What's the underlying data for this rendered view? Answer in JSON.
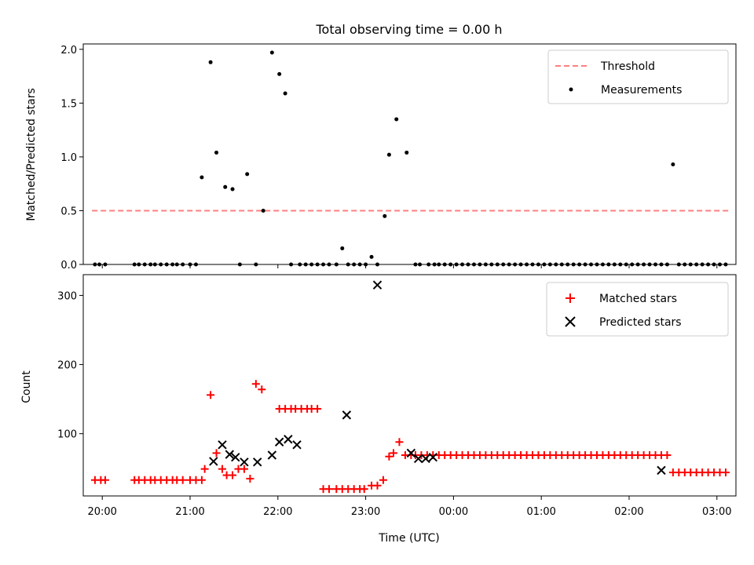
{
  "chart_data": [
    {
      "type": "scatter",
      "title": "Total observing time = 0.00 h",
      "ylabel": "Matched/Predicted stars",
      "xlim": [
        "19:47",
        "03:13"
      ],
      "ylim": [
        0,
        2.05
      ],
      "xticks": [
        "20:00",
        "21:00",
        "22:00",
        "23:00",
        "00:00",
        "01:00",
        "02:00",
        "03:00"
      ],
      "yticks": [
        0.0,
        0.5,
        1.0,
        1.5,
        2.0
      ],
      "ytick_labels": [
        "0.0",
        "0.5",
        "1.0",
        "1.5",
        "2.0"
      ],
      "legend_position": "top-right",
      "threshold": {
        "name": "Threshold",
        "value": 0.5,
        "x_range": [
          "19:53",
          "03:08"
        ],
        "color": "#ff7f7f"
      },
      "series": [
        {
          "name": "Measurements",
          "color": "#000000",
          "x": [
            "19:55",
            "19:58",
            "20:02",
            "20:22",
            "20:25",
            "20:29",
            "20:33",
            "20:36",
            "20:40",
            "20:44",
            "20:48",
            "20:51",
            "20:55",
            "21:00",
            "21:04",
            "21:08",
            "21:14",
            "21:18",
            "21:24",
            "21:29",
            "21:34",
            "21:39",
            "21:45",
            "21:50",
            "21:56",
            "22:01",
            "22:05",
            "22:09",
            "22:15",
            "22:19",
            "22:23",
            "22:27",
            "22:31",
            "22:35",
            "22:40",
            "22:44",
            "22:48",
            "22:52",
            "22:56",
            "23:00",
            "23:04",
            "23:08",
            "23:13",
            "23:16",
            "23:21",
            "23:28",
            "23:34",
            "23:37",
            "23:43",
            "23:47",
            "23:50",
            "23:54",
            "23:58",
            "00:02",
            "00:06",
            "00:10",
            "00:14",
            "00:18",
            "00:22",
            "00:26",
            "00:30",
            "00:34",
            "00:38",
            "00:42",
            "00:46",
            "00:50",
            "00:54",
            "00:58",
            "01:02",
            "01:06",
            "01:10",
            "01:14",
            "01:18",
            "01:22",
            "01:26",
            "01:30",
            "01:34",
            "01:38",
            "01:42",
            "01:46",
            "01:50",
            "01:54",
            "01:58",
            "02:02",
            "02:06",
            "02:10",
            "02:14",
            "02:18",
            "02:22",
            "02:26",
            "02:30",
            "02:34",
            "02:38",
            "02:42",
            "02:46",
            "02:50",
            "02:54",
            "02:58",
            "03:02",
            "03:06"
          ],
          "y": [
            0,
            0,
            0,
            0,
            0,
            0,
            0,
            0,
            0,
            0,
            0,
            0,
            0,
            0,
            0,
            0.81,
            1.88,
            1.04,
            0.72,
            0.7,
            0,
            0.84,
            0,
            0.5,
            1.97,
            1.77,
            1.59,
            0,
            0,
            0,
            0,
            0,
            0,
            0,
            0,
            0.15,
            0,
            0,
            0,
            0,
            0.07,
            0,
            0.45,
            1.02,
            1.35,
            1.04,
            0,
            0,
            0,
            0,
            0,
            0,
            0,
            0,
            0,
            0,
            0,
            0,
            0,
            0,
            0,
            0,
            0,
            0,
            0,
            0,
            0,
            0,
            0,
            0,
            0,
            0,
            0,
            0,
            0,
            0,
            0,
            0,
            0,
            0,
            0,
            0,
            0,
            0,
            0,
            0,
            0,
            0,
            0,
            0,
            0.93,
            0,
            0,
            0,
            0,
            0,
            0,
            0,
            0,
            0
          ]
        }
      ]
    },
    {
      "type": "scatter",
      "xlabel": "Time (UTC)",
      "ylabel": "Count",
      "xlim": [
        "19:47",
        "03:13"
      ],
      "ylim": [
        10,
        330
      ],
      "xticks": [
        "20:00",
        "21:00",
        "22:00",
        "23:00",
        "00:00",
        "01:00",
        "02:00",
        "03:00"
      ],
      "yticks": [
        100,
        200,
        300
      ],
      "legend_position": "top-right",
      "series": [
        {
          "name": "Matched stars",
          "color": "#ff0000",
          "marker": "+",
          "x": [
            "19:55",
            "19:59",
            "20:02",
            "20:22",
            "20:25",
            "20:29",
            "20:33",
            "20:36",
            "20:40",
            "20:44",
            "20:48",
            "20:51",
            "20:55",
            "21:00",
            "21:04",
            "21:08",
            "21:10",
            "21:14",
            "21:18",
            "21:22",
            "21:25",
            "21:29",
            "21:33",
            "21:37",
            "21:41",
            "21:45",
            "21:49",
            "22:01",
            "22:05",
            "22:09",
            "22:12",
            "22:16",
            "22:20",
            "22:23",
            "22:27",
            "22:31",
            "22:35",
            "22:40",
            "22:44",
            "22:48",
            "22:52",
            "22:56",
            "22:59",
            "23:04",
            "23:08",
            "23:12",
            "23:16",
            "23:19",
            "23:23",
            "23:27",
            "23:31",
            "23:34",
            "23:38",
            "23:42",
            "23:46",
            "23:50",
            "23:54",
            "23:58",
            "00:02",
            "00:06",
            "00:10",
            "00:14",
            "00:18",
            "00:22",
            "00:26",
            "00:30",
            "00:34",
            "00:38",
            "00:42",
            "00:46",
            "00:50",
            "00:54",
            "00:58",
            "01:02",
            "01:06",
            "01:10",
            "01:14",
            "01:18",
            "01:22",
            "01:26",
            "01:30",
            "01:34",
            "01:38",
            "01:42",
            "01:46",
            "01:50",
            "01:54",
            "01:58",
            "02:02",
            "02:06",
            "02:10",
            "02:14",
            "02:18",
            "02:22",
            "02:26",
            "02:30",
            "02:34",
            "02:38",
            "02:42",
            "02:46",
            "02:50",
            "02:54",
            "02:58",
            "03:02",
            "03:06"
          ],
          "y": [
            33,
            33,
            33,
            33,
            33,
            33,
            33,
            33,
            33,
            33,
            33,
            33,
            33,
            33,
            33,
            33,
            49,
            156,
            72,
            49,
            40,
            40,
            49,
            49,
            35,
            172,
            164,
            136,
            136,
            136,
            136,
            136,
            136,
            136,
            136,
            20,
            20,
            20,
            20,
            20,
            20,
            20,
            20,
            25,
            25,
            33,
            67,
            72,
            88,
            69,
            69,
            69,
            69,
            69,
            69,
            69,
            69,
            69,
            69,
            69,
            69,
            69,
            69,
            69,
            69,
            69,
            69,
            69,
            69,
            69,
            69,
            69,
            69,
            69,
            69,
            69,
            69,
            69,
            69,
            69,
            69,
            69,
            69,
            69,
            69,
            69,
            69,
            69,
            69,
            69,
            69,
            69,
            69,
            69,
            69,
            44,
            44,
            44,
            44,
            44,
            44,
            44,
            44,
            44,
            44
          ]
        },
        {
          "name": "Predicted stars",
          "color": "#000000",
          "marker": "x",
          "x": [
            "21:16",
            "21:22",
            "21:27",
            "21:31",
            "21:37",
            "21:46",
            "21:56",
            "22:01",
            "22:07",
            "22:13",
            "22:47",
            "23:08",
            "23:31",
            "23:36",
            "23:41",
            "23:46",
            "02:22"
          ],
          "y": [
            60,
            84,
            70,
            66,
            59,
            59,
            69,
            88,
            92,
            84,
            127,
            315,
            72,
            64,
            64,
            66,
            47
          ]
        }
      ]
    }
  ]
}
